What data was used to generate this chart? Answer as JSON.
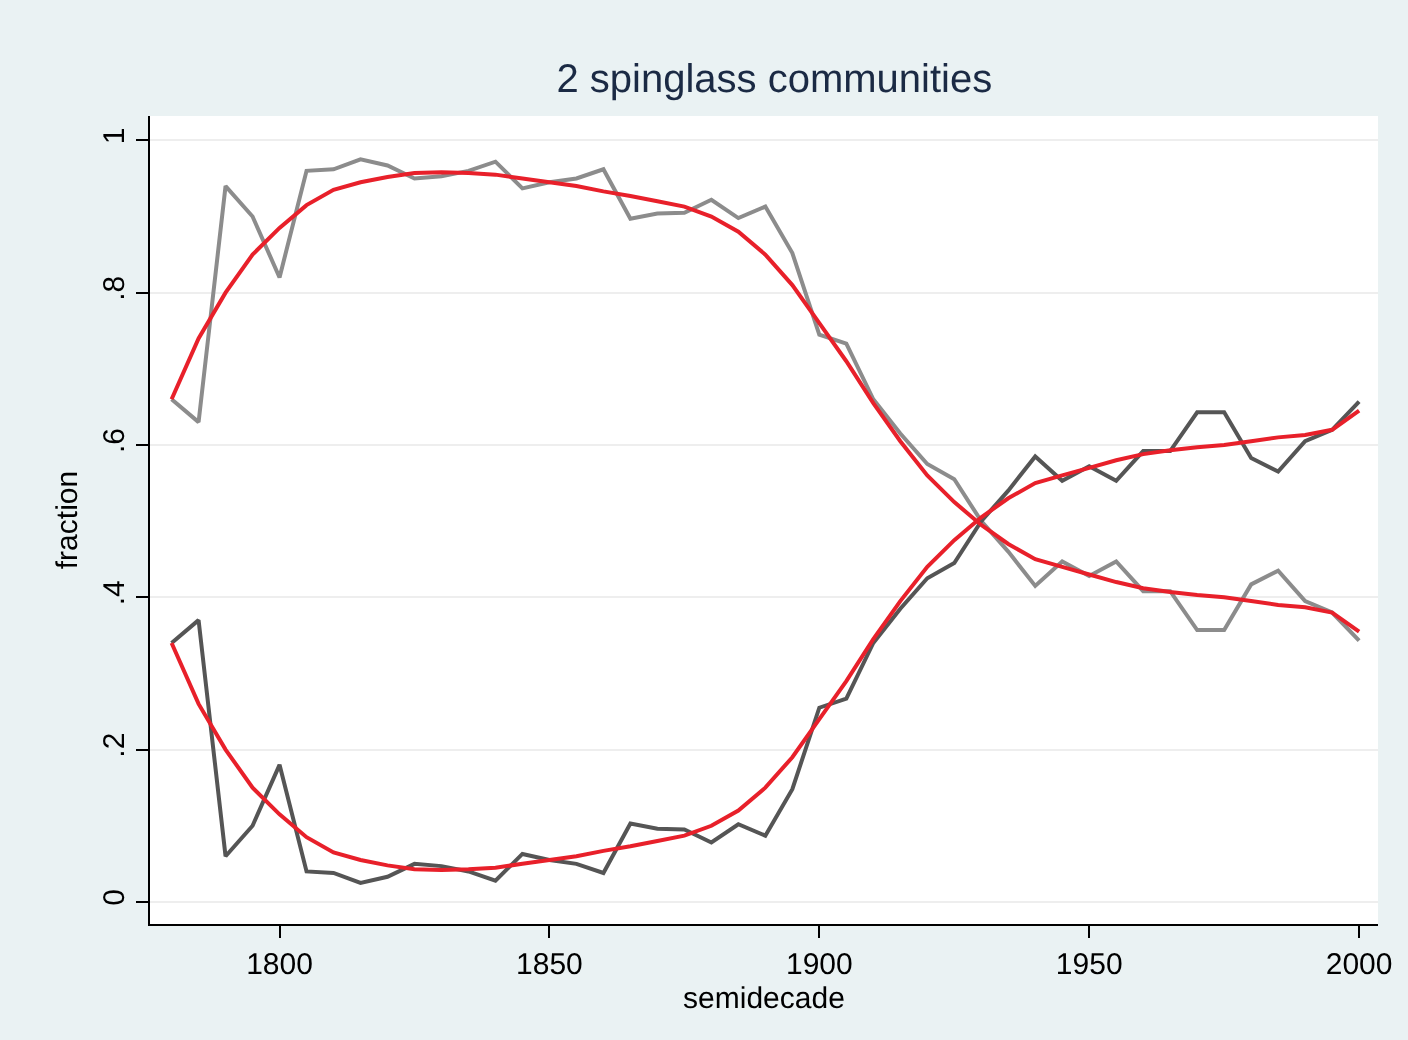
{
  "chart_data": {
    "type": "line",
    "title": "2 spinglass communities",
    "xlabel": "semidecade",
    "ylabel": "fraction",
    "x": [
      1780,
      1785,
      1790,
      1795,
      1800,
      1805,
      1810,
      1815,
      1820,
      1825,
      1830,
      1835,
      1840,
      1845,
      1850,
      1855,
      1860,
      1865,
      1870,
      1875,
      1880,
      1885,
      1890,
      1895,
      1900,
      1905,
      1910,
      1915,
      1920,
      1925,
      1930,
      1935,
      1940,
      1945,
      1950,
      1955,
      1960,
      1965,
      1970,
      1975,
      1980,
      1985,
      1990,
      1995,
      2000
    ],
    "series": [
      {
        "color": "#8c8c8c",
        "values": [
          0.66,
          0.63,
          0.94,
          0.9,
          0.82,
          0.96,
          0.962,
          0.975,
          0.967,
          0.95,
          0.953,
          0.96,
          0.972,
          0.937,
          0.945,
          0.95,
          0.962,
          0.897,
          0.904,
          0.905,
          0.922,
          0.898,
          0.913,
          0.852,
          0.745,
          0.733,
          0.66,
          0.615,
          0.575,
          0.555,
          0.5,
          0.46,
          0.415,
          0.447,
          0.428,
          0.447,
          0.408,
          0.408,
          0.357,
          0.357,
          0.417,
          0.435,
          0.395,
          0.38,
          0.343
        ]
      },
      {
        "color": "#555555",
        "values": [
          0.34,
          0.37,
          0.06,
          0.1,
          0.18,
          0.04,
          0.038,
          0.025,
          0.033,
          0.05,
          0.047,
          0.04,
          0.028,
          0.063,
          0.055,
          0.05,
          0.038,
          0.103,
          0.096,
          0.095,
          0.078,
          0.102,
          0.087,
          0.148,
          0.255,
          0.267,
          0.34,
          0.385,
          0.425,
          0.445,
          0.5,
          0.54,
          0.585,
          0.553,
          0.572,
          0.553,
          0.592,
          0.592,
          0.643,
          0.643,
          0.583,
          0.565,
          0.605,
          0.62,
          0.657
        ]
      },
      {
        "color": "#e8202a",
        "values": [
          0.66,
          0.74,
          0.8,
          0.85,
          0.885,
          0.915,
          0.935,
          0.945,
          0.952,
          0.957,
          0.958,
          0.957,
          0.955,
          0.95,
          0.945,
          0.94,
          0.933,
          0.927,
          0.92,
          0.913,
          0.9,
          0.88,
          0.85,
          0.81,
          0.76,
          0.71,
          0.655,
          0.605,
          0.56,
          0.525,
          0.495,
          0.47,
          0.45,
          0.44,
          0.43,
          0.42,
          0.412,
          0.407,
          0.403,
          0.4,
          0.395,
          0.39,
          0.387,
          0.38,
          0.355
        ]
      },
      {
        "color": "#e8202a",
        "values": [
          0.34,
          0.26,
          0.2,
          0.15,
          0.115,
          0.085,
          0.065,
          0.055,
          0.048,
          0.043,
          0.042,
          0.043,
          0.045,
          0.05,
          0.055,
          0.06,
          0.067,
          0.073,
          0.08,
          0.087,
          0.1,
          0.12,
          0.15,
          0.19,
          0.24,
          0.29,
          0.345,
          0.395,
          0.44,
          0.475,
          0.505,
          0.53,
          0.55,
          0.56,
          0.57,
          0.58,
          0.588,
          0.593,
          0.597,
          0.6,
          0.605,
          0.61,
          0.613,
          0.62,
          0.645
        ]
      }
    ],
    "xlim": [
      1776,
      2003.5
    ],
    "xticks": [
      1800,
      1850,
      1900,
      1950,
      2000
    ],
    "ylim": [
      -0.029,
      1.032
    ],
    "yticks": [
      {
        "value": 0,
        "label": "0"
      },
      {
        "value": 0.2,
        "label": ".2"
      },
      {
        "value": 0.4,
        "label": ".4"
      },
      {
        "value": 0.6,
        "label": ".6"
      },
      {
        "value": 0.8,
        "label": ".8"
      },
      {
        "value": 1,
        "label": "1"
      }
    ],
    "grid": "y"
  }
}
